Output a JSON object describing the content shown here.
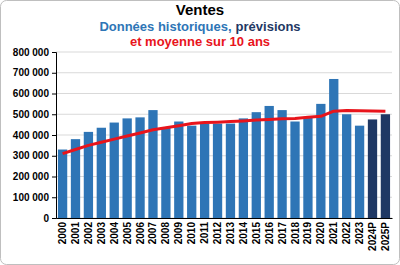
{
  "chart_data": {
    "type": "bar",
    "title": "Ventes",
    "subtitle": [
      [
        {
          "text": "Données historiques,",
          "color": "#2e75b6"
        },
        {
          "text": "prévisions",
          "color": "#1f3864"
        }
      ],
      [
        {
          "text": "et moyenne sur 10 ans",
          "color": "#e8141b"
        }
      ]
    ],
    "categories": [
      "2000",
      "2001",
      "2002",
      "2003",
      "2004",
      "2005",
      "2006",
      "2007",
      "2008",
      "2009",
      "2010",
      "2011",
      "2012",
      "2013",
      "2014",
      "2015",
      "2016",
      "2017",
      "2018",
      "2019",
      "2020",
      "2021",
      "2022",
      "2023",
      "2024P",
      "2025P"
    ],
    "series": [
      {
        "type": "bar",
        "colors": [
          "#2e75b6",
          "#2e75b6",
          "#2e75b6",
          "#2e75b6",
          "#2e75b6",
          "#2e75b6",
          "#2e75b6",
          "#2e75b6",
          "#2e75b6",
          "#2e75b6",
          "#2e75b6",
          "#2e75b6",
          "#2e75b6",
          "#2e75b6",
          "#2e75b6",
          "#2e75b6",
          "#2e75b6",
          "#2e75b6",
          "#2e75b6",
          "#2e75b6",
          "#2e75b6",
          "#2e75b6",
          "#2e75b6",
          "#2e75b6",
          "#1f3864",
          "#1f3864"
        ],
        "values": [
          330000,
          380000,
          415000,
          435000,
          460000,
          480000,
          485000,
          520000,
          435000,
          465000,
          445000,
          455000,
          455000,
          455000,
          480000,
          510000,
          540000,
          520000,
          465000,
          485000,
          550000,
          670000,
          500000,
          445000,
          475000,
          500000
        ]
      },
      {
        "type": "line",
        "color": "#e8141b",
        "values": [
          310000,
          330000,
          350000,
          365000,
          380000,
          395000,
          410000,
          425000,
          435000,
          445000,
          455000,
          460000,
          462000,
          465000,
          468000,
          472000,
          475000,
          478000,
          480000,
          485000,
          490000,
          515000,
          518000,
          517000,
          516000,
          515000
        ]
      }
    ],
    "ylim": [
      0,
      800000
    ],
    "yticks": [
      0,
      {
        "value": 100000,
        "label": "100 000"
      },
      {
        "value": 200000,
        "label": "200 000"
      },
      {
        "value": 300000,
        "label": "300 000"
      },
      {
        "value": 400000,
        "label": "400 000"
      },
      {
        "value": 500000,
        "label": "500 000"
      },
      {
        "value": 600000,
        "label": "600 000"
      },
      {
        "value": 700000,
        "label": "700 000"
      },
      {
        "value": 800000,
        "label": "800 000"
      }
    ],
    "grid": true
  }
}
